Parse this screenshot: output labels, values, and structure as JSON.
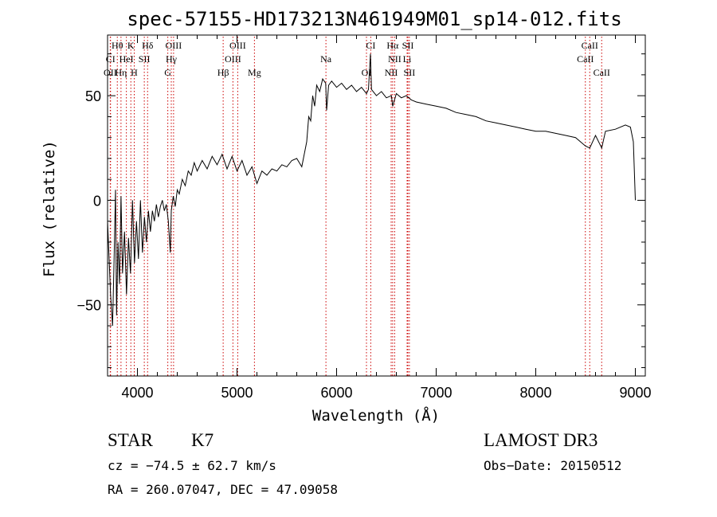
{
  "header": {
    "title": "spec-57155-HD173213N461949M01_sp14-012.fits"
  },
  "info": {
    "object_class": "STAR",
    "subclass": "K7",
    "survey": "LAMOST DR3",
    "cz": "cz = −74.5 ± 62.7 km/s",
    "obs_date": "Obs−Date: 20150512",
    "coords": "RA = 260.07047, DEC =  47.09058"
  },
  "chart_data": {
    "type": "line",
    "title": "spec-57155-HD173213N461949M01_sp14-012.fits",
    "xlabel": "Wavelength (Å)",
    "ylabel": "Flux (relative)",
    "xlim": [
      3700,
      9100
    ],
    "ylim": [
      -84,
      79
    ],
    "xticks": [
      4000,
      5000,
      6000,
      7000,
      8000,
      9000
    ],
    "yticks": [
      -50,
      0,
      50
    ],
    "ytick_labels": [
      "−50",
      "0",
      "50"
    ],
    "grid": false,
    "line_color": "#000000",
    "marker_color": "#cc0000",
    "series": [
      {
        "values": [
          [
            3700,
            -10
          ],
          [
            3730,
            -45
          ],
          [
            3750,
            -60
          ],
          [
            3765,
            -30
          ],
          [
            3780,
            5
          ],
          [
            3790,
            -55
          ],
          [
            3805,
            -20
          ],
          [
            3820,
            -40
          ],
          [
            3835,
            2
          ],
          [
            3850,
            -35
          ],
          [
            3870,
            -15
          ],
          [
            3890,
            -45
          ],
          [
            3910,
            -18
          ],
          [
            3930,
            -35
          ],
          [
            3950,
            0
          ],
          [
            3970,
            -30
          ],
          [
            3990,
            -10
          ],
          [
            4010,
            -28
          ],
          [
            4030,
            0
          ],
          [
            4050,
            -25
          ],
          [
            4070,
            -8
          ],
          [
            4090,
            -20
          ],
          [
            4110,
            -5
          ],
          [
            4130,
            -15
          ],
          [
            4150,
            -5
          ],
          [
            4170,
            -10
          ],
          [
            4190,
            -2
          ],
          [
            4210,
            -8
          ],
          [
            4230,
            -3
          ],
          [
            4250,
            0
          ],
          [
            4270,
            -5
          ],
          [
            4290,
            -2
          ],
          [
            4310,
            -10
          ],
          [
            4330,
            -25
          ],
          [
            4340,
            -5
          ],
          [
            4360,
            2
          ],
          [
            4380,
            -3
          ],
          [
            4400,
            5
          ],
          [
            4420,
            3
          ],
          [
            4450,
            10
          ],
          [
            4480,
            7
          ],
          [
            4510,
            14
          ],
          [
            4540,
            12
          ],
          [
            4570,
            18
          ],
          [
            4600,
            14
          ],
          [
            4650,
            19
          ],
          [
            4700,
            15
          ],
          [
            4750,
            21
          ],
          [
            4800,
            17
          ],
          [
            4850,
            22
          ],
          [
            4900,
            15
          ],
          [
            4950,
            21
          ],
          [
            5000,
            14
          ],
          [
            5050,
            19
          ],
          [
            5100,
            12
          ],
          [
            5150,
            16
          ],
          [
            5200,
            8
          ],
          [
            5250,
            14
          ],
          [
            5300,
            12
          ],
          [
            5350,
            15
          ],
          [
            5400,
            14
          ],
          [
            5450,
            17
          ],
          [
            5500,
            16
          ],
          [
            5550,
            19
          ],
          [
            5600,
            20
          ],
          [
            5650,
            16
          ],
          [
            5700,
            28
          ],
          [
            5720,
            40
          ],
          [
            5740,
            38
          ],
          [
            5760,
            50
          ],
          [
            5780,
            45
          ],
          [
            5800,
            55
          ],
          [
            5830,
            52
          ],
          [
            5860,
            58
          ],
          [
            5890,
            56
          ],
          [
            5900,
            43
          ],
          [
            5920,
            55
          ],
          [
            5950,
            57
          ],
          [
            6000,
            54
          ],
          [
            6050,
            56
          ],
          [
            6100,
            53
          ],
          [
            6150,
            55
          ],
          [
            6200,
            52
          ],
          [
            6250,
            54
          ],
          [
            6300,
            51
          ],
          [
            6320,
            53
          ],
          [
            6340,
            70
          ],
          [
            6350,
            53
          ],
          [
            6400,
            50
          ],
          [
            6450,
            52
          ],
          [
            6500,
            49
          ],
          [
            6550,
            50
          ],
          [
            6563,
            45
          ],
          [
            6600,
            51
          ],
          [
            6650,
            49
          ],
          [
            6700,
            50
          ],
          [
            6750,
            48
          ],
          [
            6800,
            47
          ],
          [
            6900,
            46
          ],
          [
            7000,
            45
          ],
          [
            7100,
            44
          ],
          [
            7200,
            42
          ],
          [
            7300,
            41
          ],
          [
            7400,
            40
          ],
          [
            7500,
            38
          ],
          [
            7600,
            37
          ],
          [
            7700,
            36
          ],
          [
            7800,
            35
          ],
          [
            7900,
            34
          ],
          [
            8000,
            33
          ],
          [
            8100,
            33
          ],
          [
            8200,
            32
          ],
          [
            8300,
            31
          ],
          [
            8400,
            30
          ],
          [
            8498,
            26
          ],
          [
            8542,
            25
          ],
          [
            8600,
            31
          ],
          [
            8662,
            25
          ],
          [
            8700,
            33
          ],
          [
            8800,
            34
          ],
          [
            8900,
            36
          ],
          [
            8950,
            35
          ],
          [
            8980,
            28
          ],
          [
            9000,
            0
          ]
        ]
      }
    ],
    "spectral_lines": [
      {
        "label": "Hθ",
        "wavelength": 3798,
        "row": 0
      },
      {
        "label": "K",
        "wavelength": 3934,
        "row": 0
      },
      {
        "label": "Hδ",
        "wavelength": 4102,
        "row": 0
      },
      {
        "label": "OIII",
        "wavelength": 4363,
        "row": 0
      },
      {
        "label": "OIII",
        "wavelength": 5007,
        "row": 0
      },
      {
        "label": "CI",
        "wavelength": 6343,
        "row": 0
      },
      {
        "label": "Hα",
        "wavelength": 6563,
        "row": 0
      },
      {
        "label": "SII",
        "wavelength": 6716,
        "row": 0
      },
      {
        "label": "CaII",
        "wavelength": 8542,
        "row": 0
      },
      {
        "label": "CI",
        "wavelength": 3730,
        "row": 1
      },
      {
        "label": "HeI",
        "wavelength": 3889,
        "row": 1
      },
      {
        "label": "SII",
        "wavelength": 4069,
        "row": 1
      },
      {
        "label": "Hγ",
        "wavelength": 4340,
        "row": 1
      },
      {
        "label": "OIII",
        "wavelength": 4959,
        "row": 1
      },
      {
        "label": "Na",
        "wavelength": 5893,
        "row": 1
      },
      {
        "label": "NII",
        "wavelength": 6583,
        "row": 1
      },
      {
        "label": "Li",
        "wavelength": 6708,
        "row": 1
      },
      {
        "label": "CaII",
        "wavelength": 8498,
        "row": 1
      },
      {
        "label": "OII",
        "wavelength": 3727,
        "row": 2
      },
      {
        "label": "Hη",
        "wavelength": 3835,
        "row": 2
      },
      {
        "label": "H",
        "wavelength": 3968,
        "row": 2
      },
      {
        "label": "G",
        "wavelength": 4305,
        "row": 2
      },
      {
        "label": "Hβ",
        "wavelength": 4861,
        "row": 2
      },
      {
        "label": "Mg",
        "wavelength": 5175,
        "row": 2
      },
      {
        "label": "OI",
        "wavelength": 6300,
        "row": 2
      },
      {
        "label": "NII",
        "wavelength": 6548,
        "row": 2
      },
      {
        "label": "SII",
        "wavelength": 6731,
        "row": 2
      },
      {
        "label": "CaII",
        "wavelength": 8662,
        "row": 2
      }
    ]
  }
}
